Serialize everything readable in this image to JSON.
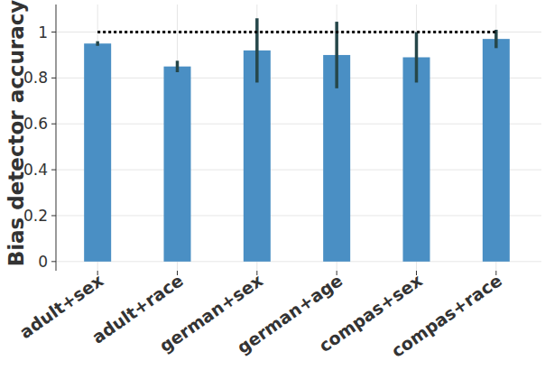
{
  "chart_data": {
    "type": "bar",
    "y_label": "Bias detector accuracy",
    "categories": [
      "adult+sex",
      "adult+race",
      "german+sex",
      "german+age",
      "compas+sex",
      "compas+race"
    ],
    "values": [
      0.95,
      0.85,
      0.92,
      0.9,
      0.89,
      0.97
    ],
    "errors": [
      0.01,
      0.025,
      0.14,
      0.145,
      0.11,
      0.04
    ],
    "reference_value": 1,
    "color": "#4a8fc4",
    "ylim": [
      -0.04,
      1.12
    ],
    "yticks": [
      0,
      0.2,
      0.4,
      0.6,
      0.8,
      1
    ],
    "grid": true
  }
}
